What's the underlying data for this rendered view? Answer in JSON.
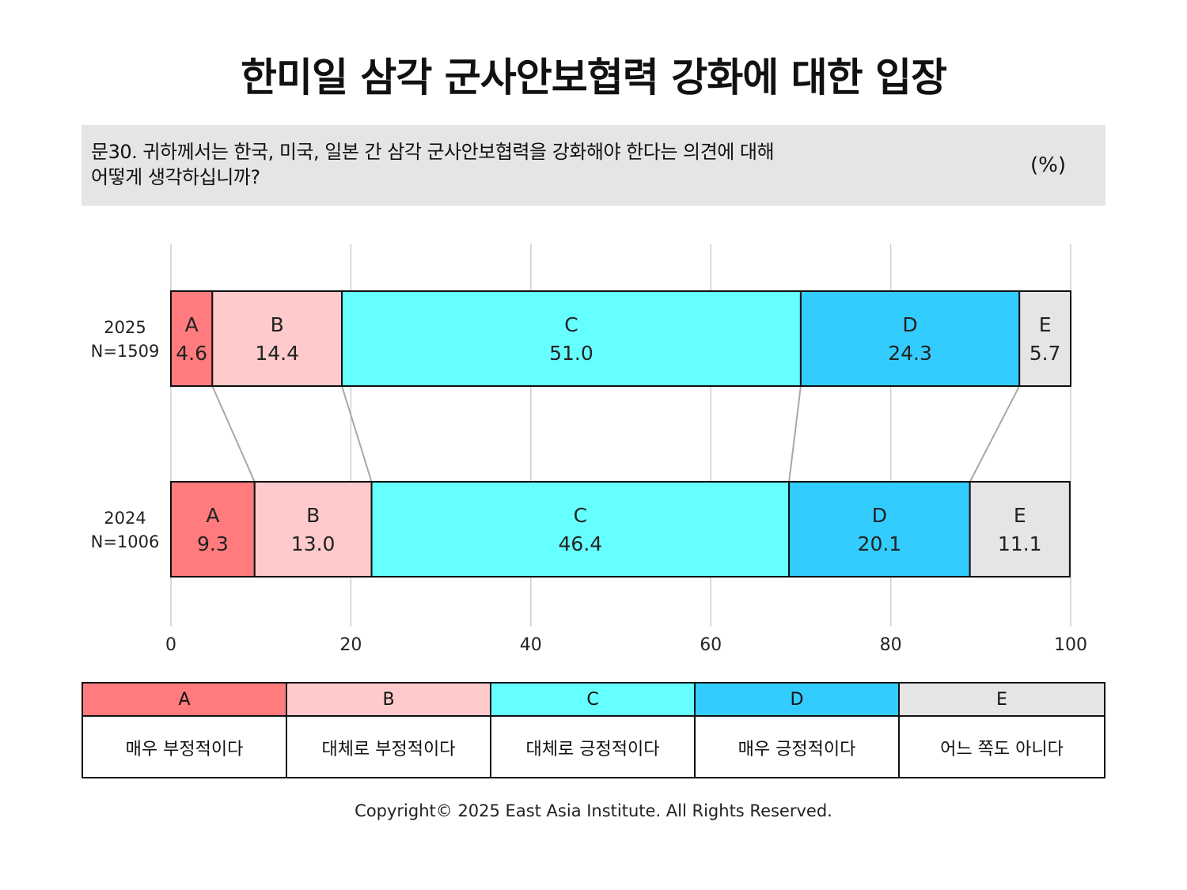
{
  "title": "한미일 삼각 군사안보협력 강화에 대한 입장",
  "question": {
    "line1": "문30. 귀하께서는 한국, 미국, 일본 간 삼각 군사안보협력을 강화해야 한다는 의견에 대해",
    "line2": "어떻게 생각하십니까?",
    "unit": "(%)"
  },
  "chart_data": {
    "type": "bar",
    "orientation": "horizontal",
    "stacked": true,
    "categories": [
      {
        "year": "2025",
        "n": "N=1509"
      },
      {
        "year": "2024",
        "n": "N=1006"
      }
    ],
    "series": [
      {
        "name": "A",
        "label": "매우 부정적이다",
        "color": "#ff7b7d",
        "values": [
          4.6,
          9.3
        ]
      },
      {
        "name": "B",
        "label": "대체로 부정적이다",
        "color": "#ffcacb",
        "values": [
          14.4,
          13.0
        ]
      },
      {
        "name": "C",
        "label": "대체로 긍정적이다",
        "color": "#66ffff",
        "values": [
          51.0,
          46.4
        ]
      },
      {
        "name": "D",
        "label": "매우 긍정적이다",
        "color": "#33ccff",
        "values": [
          24.3,
          20.1
        ]
      },
      {
        "name": "E",
        "label": "어느 쪽도 아니다",
        "color": "#e6e5e6",
        "values": [
          5.7,
          11.1
        ]
      }
    ],
    "xlim": [
      0,
      100
    ],
    "xticks": [
      "0",
      "20",
      "40",
      "60",
      "80",
      "100"
    ],
    "grid": true,
    "connector_lines": true
  },
  "copyright": "Copyright© 2025 East Asia Institute. All Rights Reserved."
}
